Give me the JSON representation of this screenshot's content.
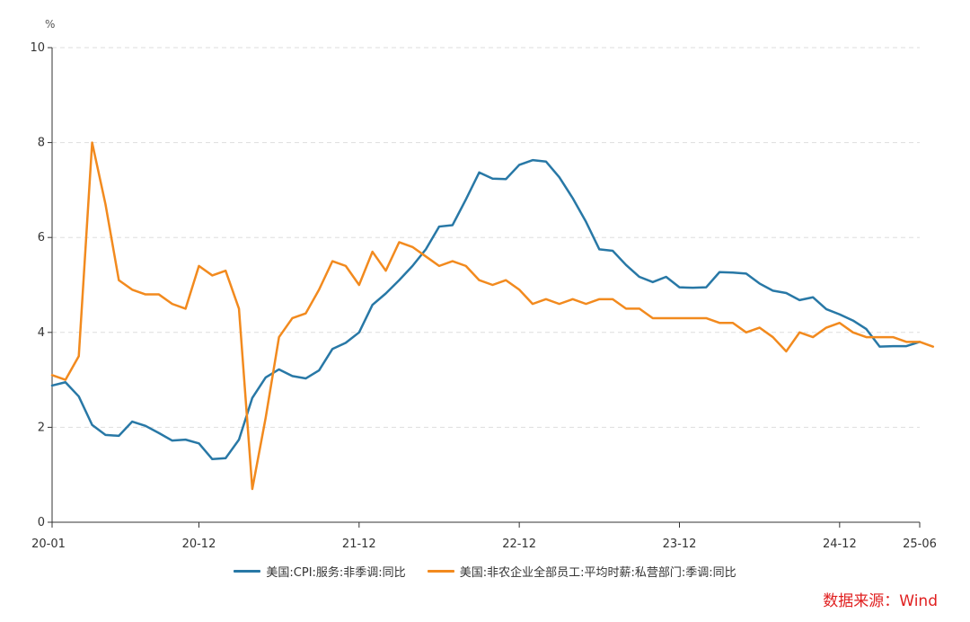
{
  "chart_data": {
    "type": "line",
    "unit": "%",
    "ylim": [
      0,
      10
    ],
    "yticks": [
      0,
      2,
      4,
      6,
      8,
      10
    ],
    "x_tick_labels": [
      "20-01",
      "20-12",
      "21-12",
      "22-12",
      "23-12",
      "24-12",
      "25-06"
    ],
    "x_tick_months": [
      0,
      11,
      23,
      35,
      47,
      59,
      65
    ],
    "grid": "horizontal dashed",
    "legend_position": "bottom-center",
    "series": [
      {
        "name": "美国:CPI:服务:非季调:同比",
        "color": "#2878a6",
        "start_month": 0,
        "values": [
          2.88,
          2.95,
          2.65,
          2.05,
          1.84,
          1.82,
          2.12,
          2.03,
          1.88,
          1.72,
          1.74,
          1.66,
          1.33,
          1.35,
          1.74,
          2.62,
          3.05,
          3.22,
          3.08,
          3.03,
          3.2,
          3.65,
          3.78,
          4.0,
          4.58,
          4.82,
          5.1,
          5.4,
          5.75,
          6.23,
          6.26,
          6.8,
          7.37,
          7.24,
          7.23,
          7.53,
          7.63,
          7.6,
          7.27,
          6.83,
          6.33,
          5.75,
          5.72,
          5.42,
          5.17,
          5.06,
          5.17,
          4.95,
          4.94,
          4.95,
          5.27,
          5.26,
          5.24,
          5.03,
          4.88,
          4.83,
          4.68,
          4.74,
          4.49,
          4.38,
          4.25,
          4.07,
          3.7,
          3.71,
          3.71,
          3.8
        ]
      },
      {
        "name": "美国:非农企业全部员工:平均时薪:私营部门:季调:同比",
        "color": "#f28a1e",
        "start_month": 0,
        "values": [
          3.1,
          3.0,
          3.5,
          8.0,
          6.7,
          5.1,
          4.9,
          4.8,
          4.8,
          4.6,
          4.5,
          5.4,
          5.2,
          5.3,
          4.5,
          0.7,
          2.2,
          3.9,
          4.3,
          4.4,
          4.9,
          5.5,
          5.4,
          5.0,
          5.7,
          5.3,
          5.9,
          5.8,
          5.6,
          5.4,
          5.5,
          5.4,
          5.1,
          5.0,
          5.1,
          4.9,
          4.6,
          4.7,
          4.6,
          4.7,
          4.6,
          4.7,
          4.7,
          4.5,
          4.5,
          4.3,
          4.3,
          4.3,
          4.3,
          4.3,
          4.2,
          4.2,
          4.0,
          4.1,
          3.9,
          3.6,
          4.0,
          3.9,
          4.1,
          4.2,
          4.0,
          3.9,
          3.9,
          3.9,
          3.8,
          3.8,
          3.7
        ]
      }
    ]
  },
  "source_text": "数据来源：Wind"
}
